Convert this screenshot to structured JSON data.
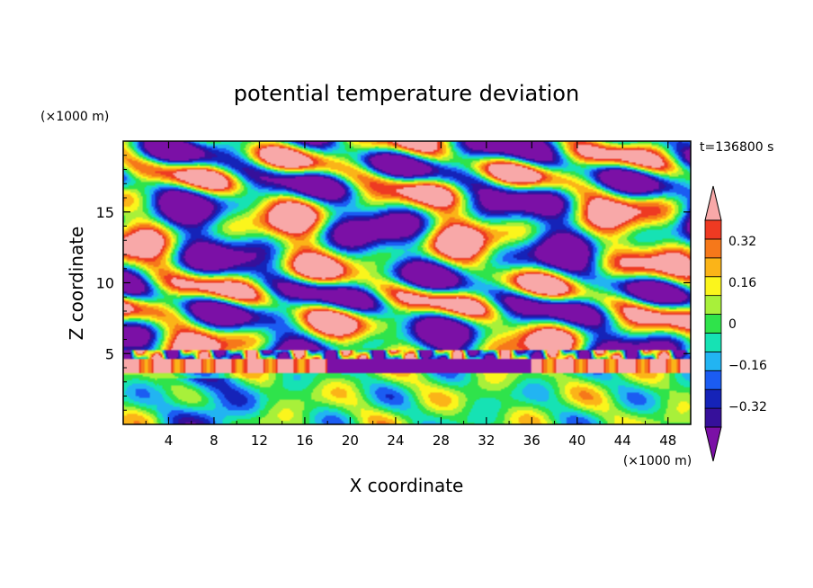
{
  "chart_data": {
    "type": "heatmap",
    "title": "potential temperature deviation",
    "xlabel": "X coordinate",
    "ylabel": "Z coordinate",
    "x_unit": "(×1000 m)",
    "y_unit": "(×1000 m)",
    "time_label": "t=136800 s",
    "xlim": [
      0,
      50
    ],
    "ylim": [
      0,
      20
    ],
    "x_ticks": [
      4,
      8,
      12,
      16,
      20,
      24,
      28,
      32,
      36,
      40,
      44,
      48
    ],
    "y_ticks": [
      5,
      10,
      15
    ],
    "colorbar": {
      "levels": [
        -0.48,
        -0.4,
        -0.32,
        -0.24,
        -0.16,
        -0.08,
        0,
        0.08,
        0.16,
        0.24,
        0.32,
        0.4,
        0.48
      ],
      "tick_labels": [
        "0.32",
        "0.16",
        "0",
        "−0.16",
        "−0.32"
      ],
      "tick_values": [
        0.32,
        0.16,
        0,
        -0.16,
        -0.32
      ],
      "colors": [
        "#7b10a6",
        "#36109a",
        "#1523b8",
        "#1b5cf2",
        "#22b4f2",
        "#16e2b4",
        "#2fe34b",
        "#a8f03a",
        "#fbf51c",
        "#fbb418",
        "#f6781a",
        "#ee3a22",
        "#f8a8a8"
      ],
      "extend": "both"
    }
  }
}
